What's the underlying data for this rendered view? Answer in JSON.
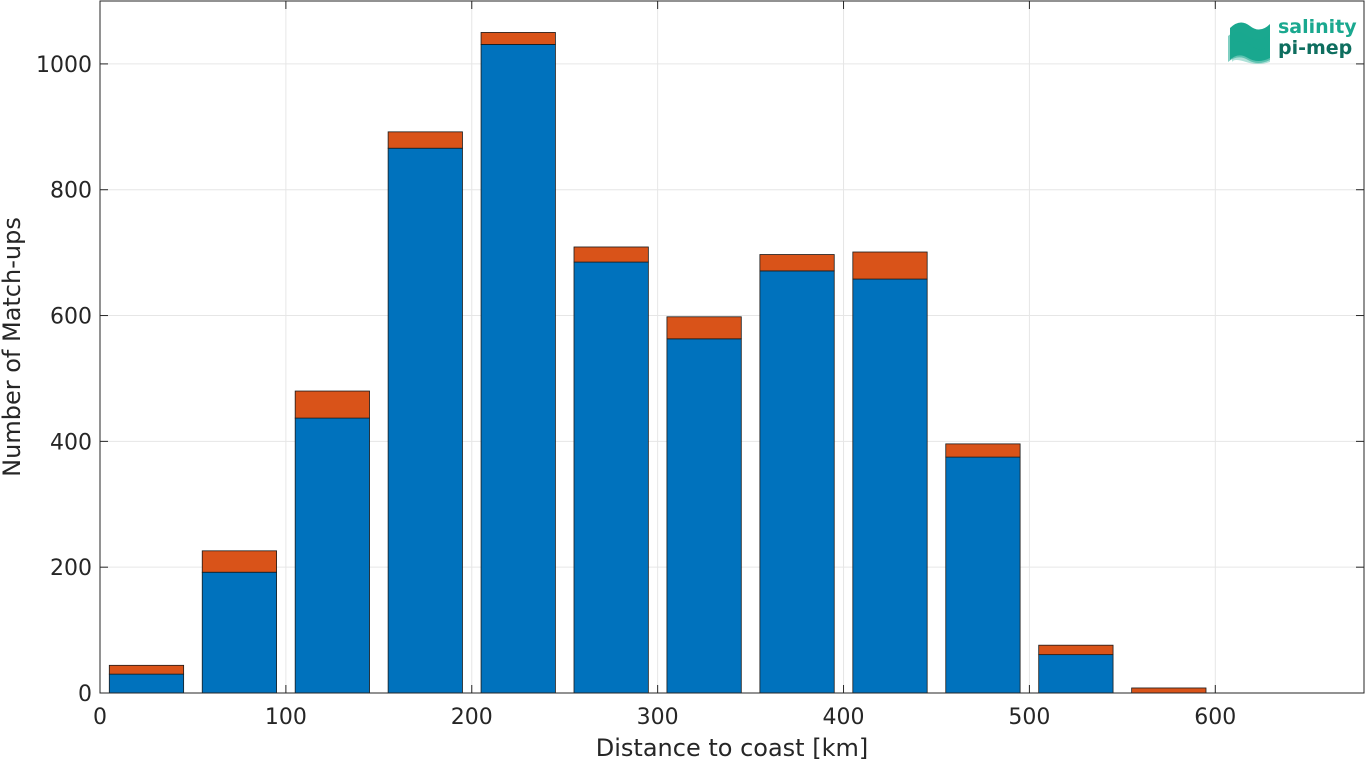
{
  "chart_data": {
    "type": "bar",
    "stacked": true,
    "xlabel": "Distance to coast [km]",
    "ylabel": "Number of Match-ups",
    "xlim": [
      0,
      680
    ],
    "ylim": [
      0,
      1100
    ],
    "bin_width": 50,
    "bin_centers": [
      25,
      75,
      125,
      175,
      225,
      275,
      325,
      375,
      425,
      475,
      525,
      575,
      625
    ],
    "x_ticks": [
      0,
      100,
      200,
      300,
      400,
      500,
      600
    ],
    "y_ticks": [
      0,
      200,
      400,
      600,
      800,
      1000
    ],
    "grid": true,
    "series": [
      {
        "color": "#0072BD",
        "values": [
          30,
          192,
          437,
          866,
          1031,
          685,
          563,
          671,
          658,
          375,
          61,
          0,
          0
        ]
      },
      {
        "color": "#D95319",
        "values": [
          14,
          34,
          43,
          26,
          19,
          24,
          35,
          26,
          43,
          21,
          15,
          8,
          0
        ]
      }
    ]
  },
  "logo": {
    "line1": "salinity",
    "line2": "pi-mep",
    "color": "#1aa88f",
    "dark_color": "#0e6e5f"
  }
}
